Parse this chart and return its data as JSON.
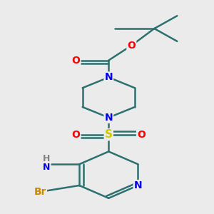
{
  "bg_color": "#ebebeb",
  "atom_colors": {
    "C": "#000000",
    "N": "#0000ee",
    "O": "#ff0000",
    "S": "#cccc00",
    "Br": "#cc8800",
    "H": "#808080"
  },
  "bond_color": "#2d7070",
  "line_width": 1.8,
  "figsize": [
    3.0,
    3.0
  ],
  "dpi": 100
}
